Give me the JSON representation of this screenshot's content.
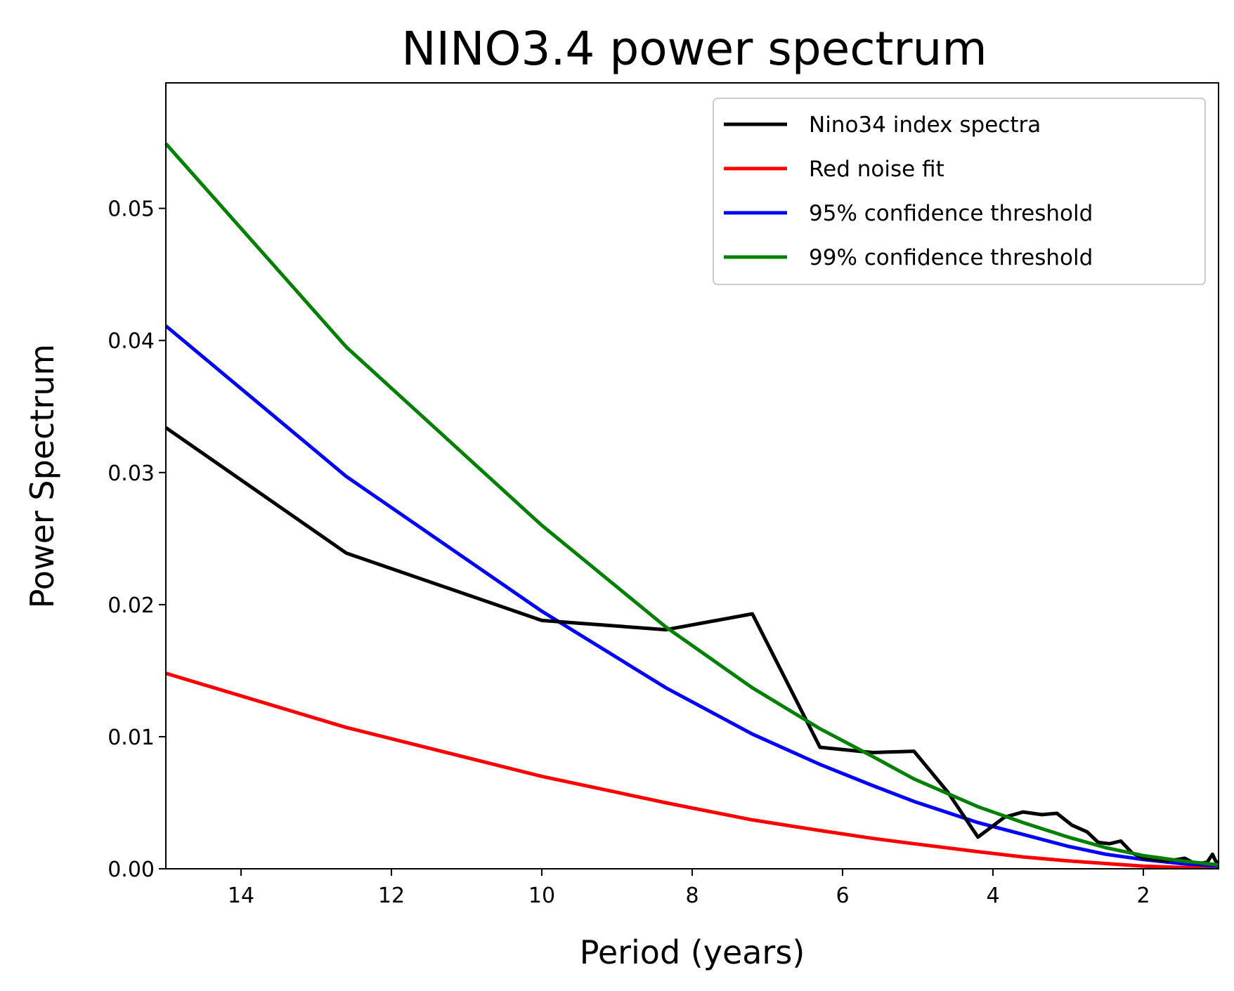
{
  "chart_data": {
    "type": "line",
    "title": "NINO3.4 power spectrum",
    "xlabel": "Period (years)",
    "ylabel": "Power Spectrum",
    "xlim": [
      15,
      1
    ],
    "ylim": [
      0,
      0.0595
    ],
    "x_reversed": true,
    "grid": false,
    "legend_position": "top-right",
    "x_ticks": [
      14,
      12,
      10,
      8,
      6,
      4,
      2
    ],
    "y_ticks": [
      0.0,
      0.01,
      0.02,
      0.03,
      0.04,
      0.05
    ],
    "x_tick_labels": [
      "14",
      "12",
      "10",
      "8",
      "6",
      "4",
      "2"
    ],
    "y_tick_labels": [
      "0.00",
      "0.01",
      "0.02",
      "0.03",
      "0.04",
      "0.05"
    ],
    "series": [
      {
        "name": "Nino34 index spectra",
        "color": "#000000",
        "points": [
          [
            15.0,
            0.0334
          ],
          [
            12.6,
            0.0239
          ],
          [
            10.0,
            0.0188
          ],
          [
            8.35,
            0.0181
          ],
          [
            7.2,
            0.0193
          ],
          [
            6.3,
            0.0092
          ],
          [
            5.6,
            0.0088
          ],
          [
            5.05,
            0.0089
          ],
          [
            4.6,
            0.0058
          ],
          [
            4.2,
            0.0024
          ],
          [
            3.85,
            0.0039
          ],
          [
            3.6,
            0.0043
          ],
          [
            3.35,
            0.0041
          ],
          [
            3.15,
            0.0042
          ],
          [
            2.95,
            0.0033
          ],
          [
            2.75,
            0.0028
          ],
          [
            2.6,
            0.002
          ],
          [
            2.45,
            0.0019
          ],
          [
            2.3,
            0.0021
          ],
          [
            2.15,
            0.0012
          ],
          [
            2.0,
            0.0008
          ],
          [
            1.85,
            0.0007
          ],
          [
            1.7,
            0.0006
          ],
          [
            1.55,
            0.0007
          ],
          [
            1.45,
            0.0008
          ],
          [
            1.35,
            0.0005
          ],
          [
            1.25,
            0.0004
          ],
          [
            1.15,
            0.0005
          ],
          [
            1.08,
            0.0011
          ],
          [
            1.04,
            0.0006
          ],
          [
            1.0,
            0.0004
          ]
        ]
      },
      {
        "name": "Red noise fit",
        "color": "#ff0000",
        "points": [
          [
            15.0,
            0.0148
          ],
          [
            12.6,
            0.0107
          ],
          [
            10.0,
            0.007
          ],
          [
            8.35,
            0.005
          ],
          [
            7.2,
            0.0037
          ],
          [
            6.3,
            0.0029
          ],
          [
            5.6,
            0.0023
          ],
          [
            5.05,
            0.0019
          ],
          [
            4.2,
            0.0013
          ],
          [
            3.6,
            0.0009
          ],
          [
            3.0,
            0.0006
          ],
          [
            2.5,
            0.0004
          ],
          [
            2.0,
            0.0002
          ],
          [
            1.5,
            0.0001
          ],
          [
            1.0,
            0.0001
          ]
        ]
      },
      {
        "name": "95% confidence threshold",
        "color": "#0000ff",
        "points": [
          [
            15.0,
            0.0411
          ],
          [
            12.6,
            0.0297
          ],
          [
            10.0,
            0.0195
          ],
          [
            8.35,
            0.0137
          ],
          [
            7.2,
            0.0102
          ],
          [
            6.3,
            0.0079
          ],
          [
            5.6,
            0.0063
          ],
          [
            5.05,
            0.0051
          ],
          [
            4.2,
            0.0035
          ],
          [
            3.6,
            0.0026
          ],
          [
            3.0,
            0.0017
          ],
          [
            2.5,
            0.0011
          ],
          [
            2.0,
            0.0007
          ],
          [
            1.5,
            0.0004
          ],
          [
            1.0,
            0.0002
          ]
        ]
      },
      {
        "name": "99% confidence threshold",
        "color": "#008000",
        "points": [
          [
            15.0,
            0.0549
          ],
          [
            12.6,
            0.0395
          ],
          [
            10.0,
            0.026
          ],
          [
            8.35,
            0.0183
          ],
          [
            7.2,
            0.0137
          ],
          [
            6.3,
            0.0106
          ],
          [
            5.6,
            0.0085
          ],
          [
            5.05,
            0.0068
          ],
          [
            4.2,
            0.0047
          ],
          [
            3.6,
            0.0035
          ],
          [
            3.0,
            0.0024
          ],
          [
            2.5,
            0.0016
          ],
          [
            2.0,
            0.001
          ],
          [
            1.5,
            0.0006
          ],
          [
            1.0,
            0.0003
          ]
        ]
      }
    ]
  }
}
